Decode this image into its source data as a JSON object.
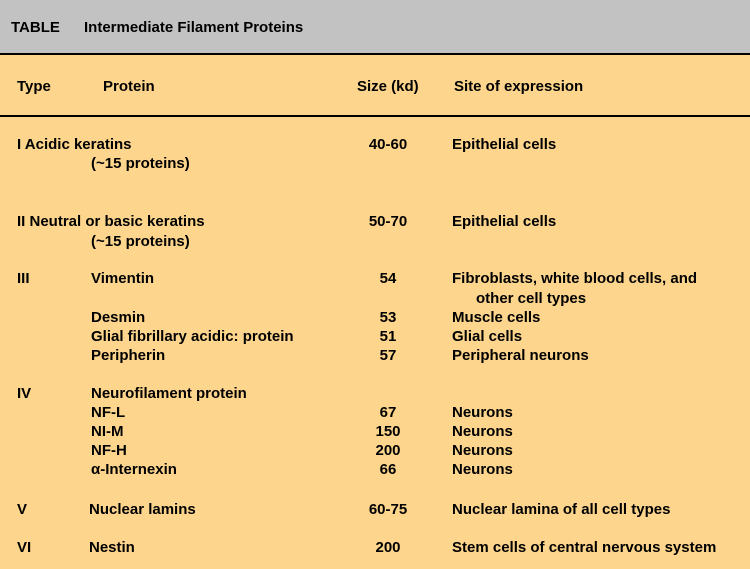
{
  "table": {
    "label": "TABLE",
    "title": "Intermediate Filament Proteins",
    "columns": [
      "Type",
      "Protein",
      "Size (kd)",
      "Site of expression"
    ],
    "rows": [
      {
        "type": "I Acidic keratins",
        "protein": "(~15 proteins)",
        "size": "40-60",
        "site": "Epithelial cells"
      },
      {
        "type": "II Neutral or basic keratins",
        "protein": "(~15 proteins)",
        "size": "50-70",
        "site": "Epithelial cells"
      },
      {
        "type": "III",
        "protein": "Vimentin",
        "size": "54",
        "site": "Fibroblasts, white blood cells, and",
        "site2": "other cell types"
      },
      {
        "type": "",
        "protein": "Desmin",
        "size": "53",
        "site": "Muscle cells"
      },
      {
        "type": "",
        "protein": "Glial fibrillary acidic: protein",
        "size": "51",
        "site": "Glial cells"
      },
      {
        "type": "",
        "protein": "Peripherin",
        "size": "57",
        "site": "Peripheral neurons"
      },
      {
        "type": "IV",
        "protein": "Neurofilament protein",
        "size": "",
        "site": ""
      },
      {
        "type": "",
        "protein": "NF-L",
        "size": "67",
        "site": "Neurons"
      },
      {
        "type": "",
        "protein": "NI-M",
        "size": "150",
        "site": "Neurons"
      },
      {
        "type": "",
        "protein": "NF-H",
        "size": "200",
        "site": "Neurons"
      },
      {
        "type": "",
        "protein": "α-Internexin",
        "size": "66",
        "site": "Neurons"
      },
      {
        "type": "V",
        "protein": "Nuclear lamins",
        "size": "60-75",
        "site": "Nuclear lamina of all cell types"
      },
      {
        "type": "VI",
        "protein": "Nestin",
        "size": "200",
        "site": "Stem cells of central nervous system"
      }
    ]
  }
}
